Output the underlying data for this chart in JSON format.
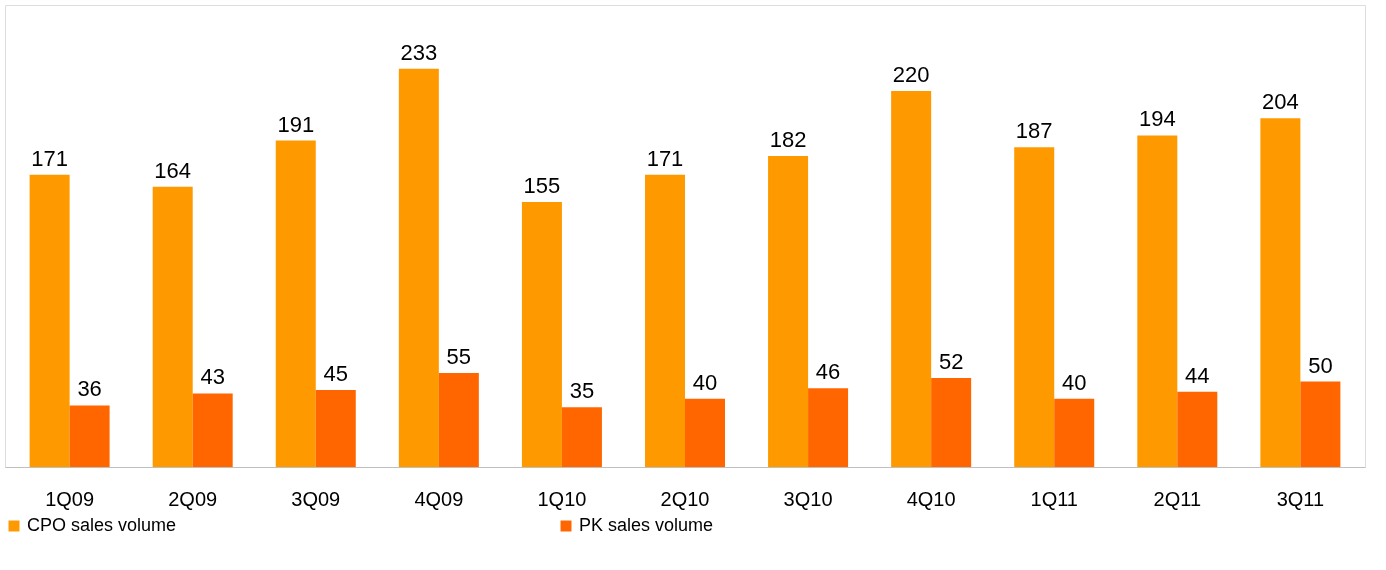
{
  "chart_data": {
    "type": "bar",
    "categories": [
      "1Q09",
      "2Q09",
      "3Q09",
      "4Q09",
      "1Q10",
      "2Q10",
      "3Q10",
      "4Q10",
      "1Q11",
      "2Q11",
      "3Q11"
    ],
    "series": [
      {
        "name": "CPO sales volume",
        "color": "#ff9900",
        "values": [
          171,
          164,
          191,
          233,
          155,
          171,
          182,
          220,
          187,
          194,
          204
        ]
      },
      {
        "name": "PK sales volume",
        "color": "#ff6600",
        "values": [
          36,
          43,
          45,
          55,
          35,
          40,
          46,
          52,
          40,
          44,
          50
        ]
      }
    ],
    "data_labels": true,
    "legend": "bottom",
    "grid": false
  }
}
